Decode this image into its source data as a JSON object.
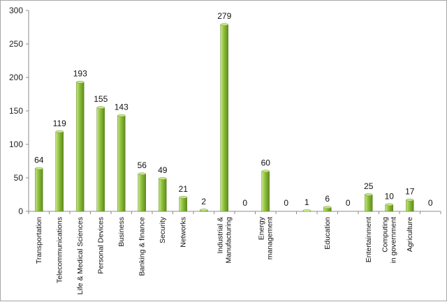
{
  "chart_data": {
    "type": "bar",
    "title": "",
    "xlabel": "",
    "ylabel": "",
    "ylim": [
      0,
      300
    ],
    "yticks": [
      0,
      50,
      100,
      150,
      200,
      250,
      300
    ],
    "grid": false,
    "legend": "none",
    "bar_color_light": "#c9e58a",
    "bar_color": "#8cbf3a",
    "bar_color_dark": "#5f8a1e",
    "categories": [
      [
        "Transportation"
      ],
      [
        "Telecommunications"
      ],
      [
        "Life & Medical Sciences"
      ],
      [
        "Personal Devices"
      ],
      [
        "Business"
      ],
      [
        "Banking & finance"
      ],
      [
        "Security"
      ],
      [
        "Networks"
      ],
      [
        ""
      ],
      [
        "Industrial &",
        "Manufacturing"
      ],
      [
        ""
      ],
      [
        "Energy",
        "management"
      ],
      [
        ""
      ],
      [
        ""
      ],
      [
        "Education"
      ],
      [
        ""
      ],
      [
        "Entertainment"
      ],
      [
        "Computing",
        "in government"
      ],
      [
        "Agriculture"
      ],
      [
        ""
      ]
    ],
    "values": [
      64,
      119,
      193,
      155,
      143,
      56,
      49,
      21,
      2,
      279,
      0,
      60,
      0,
      1,
      6,
      0,
      25,
      10,
      17,
      0
    ]
  }
}
